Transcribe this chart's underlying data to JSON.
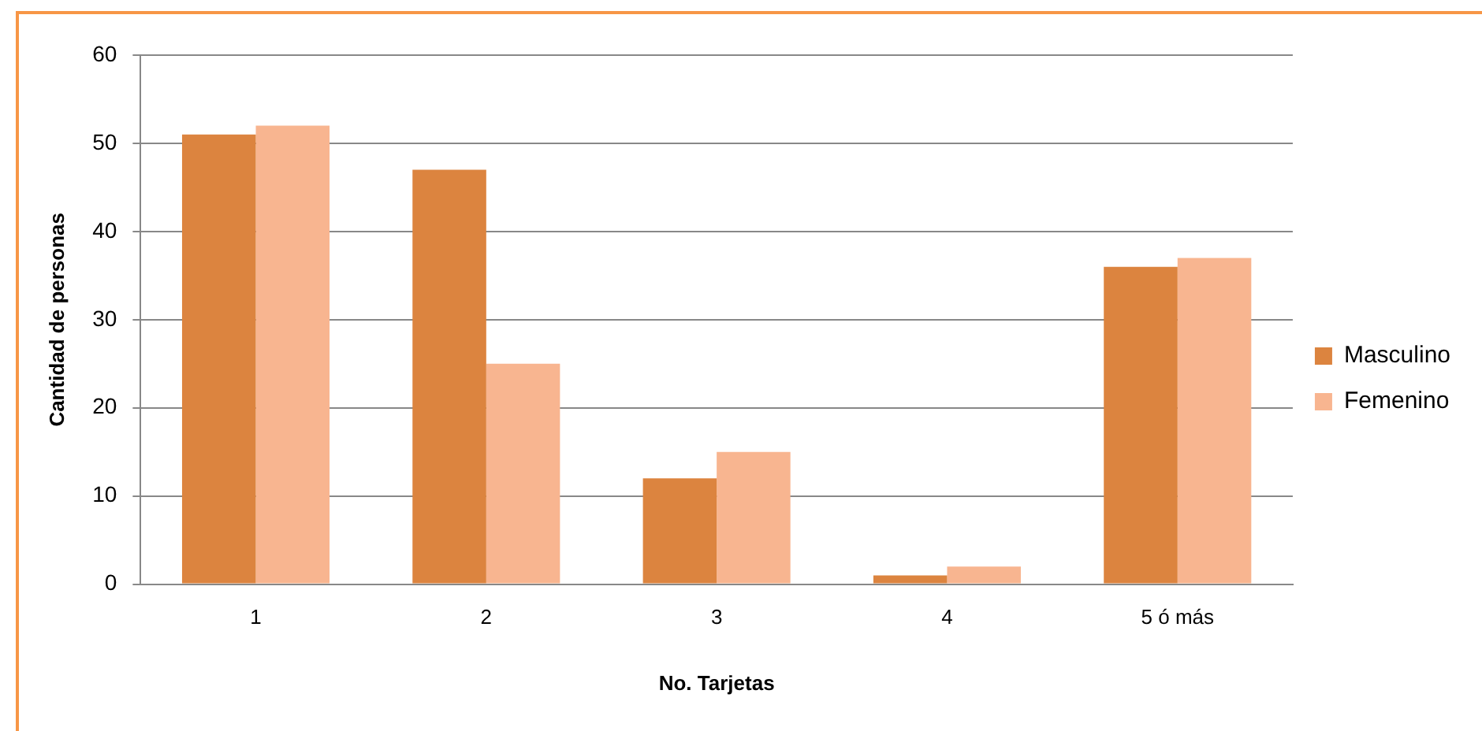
{
  "chart_data": {
    "type": "bar",
    "xlabel": "No. Tarjetas",
    "ylabel": "Cantidad de personas",
    "categories": [
      "1",
      "2",
      "3",
      "4",
      "5 ó más"
    ],
    "series": [
      {
        "name": "Masculino",
        "color": "#dc843f",
        "values": [
          51,
          47,
          12,
          1,
          36
        ]
      },
      {
        "name": "Femenino",
        "color": "#f8b590",
        "values": [
          52,
          25,
          15,
          2,
          37
        ]
      }
    ],
    "ylim": [
      0,
      60
    ],
    "yticks": [
      0,
      10,
      20,
      30,
      40,
      50,
      60
    ],
    "grid": "y",
    "legend": "right"
  }
}
